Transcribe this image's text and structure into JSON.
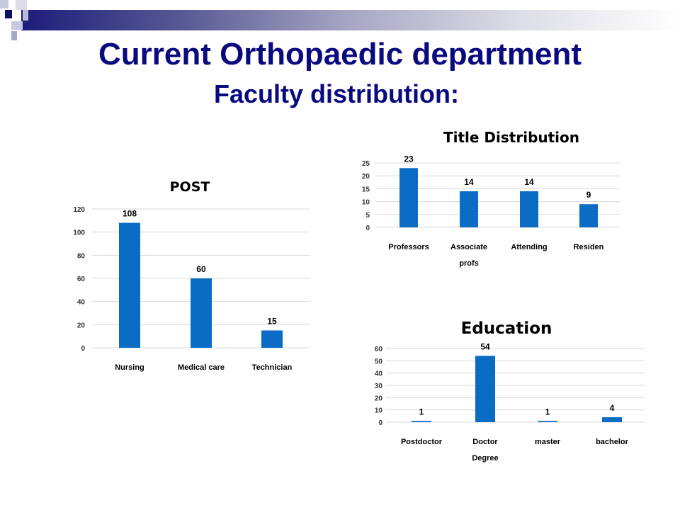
{
  "slide": {
    "title": "Current Orthopaedic department",
    "subtitle": "Faculty distribution:"
  },
  "colors": {
    "bar": "#0a6cc4",
    "title": "#0a0a80",
    "grid": "#d9d9d9"
  },
  "chart_data": [
    {
      "type": "bar",
      "title": "POST",
      "categories": [
        "Nursing",
        "Medical care",
        "Technician"
      ],
      "values": [
        108,
        60,
        15
      ],
      "ylim": [
        0,
        120
      ],
      "yticks": [
        0,
        20,
        40,
        60,
        80,
        100,
        120
      ],
      "grid": true
    },
    {
      "type": "bar",
      "title": "Title Distribution",
      "categories": [
        "Professors",
        "Associate profs",
        "Attending",
        "Residen"
      ],
      "values": [
        23,
        14,
        14,
        9
      ],
      "ylim": [
        0,
        25
      ],
      "yticks": [
        0,
        5,
        10,
        15,
        20,
        25
      ],
      "grid": true
    },
    {
      "type": "bar",
      "title": "Education",
      "categories": [
        "Postdoctor",
        "Doctor Degree",
        "master",
        "bachelor"
      ],
      "values": [
        1,
        54,
        1,
        4
      ],
      "ylim": [
        0,
        60
      ],
      "yticks": [
        0,
        10,
        20,
        30,
        40,
        50,
        60
      ],
      "grid": true
    }
  ]
}
